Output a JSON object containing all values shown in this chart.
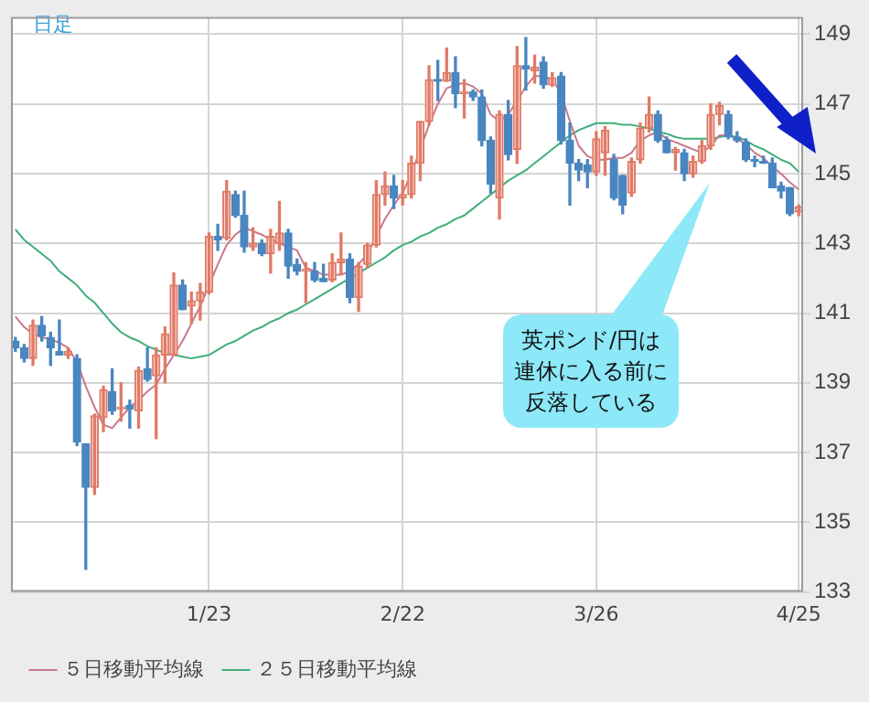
{
  "chart_data": {
    "type": "candlestick",
    "categories": [
      null,
      null,
      null,
      null,
      null,
      null,
      null,
      null,
      null,
      null,
      null,
      null,
      null,
      null,
      null,
      null,
      null,
      null,
      null,
      null,
      null,
      null,
      "1/23",
      null,
      null,
      null,
      null,
      null,
      null,
      null,
      null,
      null,
      null,
      null,
      null,
      null,
      null,
      null,
      null,
      null,
      null,
      null,
      null,
      null,
      "2/22",
      null,
      null,
      null,
      null,
      null,
      null,
      null,
      null,
      null,
      null,
      null,
      null,
      null,
      null,
      null,
      null,
      null,
      null,
      null,
      null,
      null,
      "3/26",
      null,
      null,
      null,
      null,
      null,
      null,
      null,
      null,
      null,
      null,
      null,
      null,
      null,
      null,
      null,
      null,
      null,
      null,
      null,
      null,
      null,
      null,
      "4/25"
    ],
    "ohlc": [
      [
        140.2,
        140.3,
        139.9,
        140.0
      ],
      [
        140.0,
        140.1,
        139.6,
        139.7
      ],
      [
        139.7,
        140.8,
        139.5,
        140.65
      ],
      [
        140.65,
        140.9,
        140.2,
        140.35
      ],
      [
        140.3,
        140.45,
        139.5,
        140.0
      ],
      [
        139.9,
        140.8,
        139.8,
        139.8
      ],
      [
        139.8,
        140.0,
        139.7,
        139.9
      ],
      [
        139.7,
        139.8,
        137.2,
        137.3
      ],
      [
        137.25,
        137.25,
        133.65,
        136.0
      ],
      [
        136.0,
        138.1,
        135.8,
        138.05
      ],
      [
        138.0,
        138.9,
        137.6,
        138.8
      ],
      [
        138.75,
        139.4,
        138.1,
        138.2
      ],
      [
        138.25,
        139.0,
        137.9,
        138.3
      ],
      [
        138.35,
        138.5,
        137.7,
        138.25
      ],
      [
        138.2,
        139.45,
        137.7,
        139.35
      ],
      [
        139.4,
        140.0,
        139.05,
        139.1
      ],
      [
        139.2,
        140.0,
        137.4,
        139.8
      ],
      [
        139.8,
        140.6,
        139.0,
        140.4
      ],
      [
        139.8,
        142.15,
        139.8,
        141.8
      ],
      [
        141.8,
        141.95,
        141.1,
        141.1
      ],
      [
        141.2,
        141.6,
        140.7,
        141.35
      ],
      [
        141.35,
        141.85,
        140.8,
        141.6
      ],
      [
        141.6,
        143.3,
        141.55,
        143.2
      ],
      [
        143.2,
        143.55,
        142.8,
        143.1
      ],
      [
        143.15,
        144.8,
        143.1,
        144.5
      ],
      [
        144.4,
        144.5,
        143.75,
        143.8
      ],
      [
        143.8,
        144.5,
        142.75,
        142.9
      ],
      [
        142.9,
        143.45,
        142.8,
        143.0
      ],
      [
        143.0,
        143.1,
        142.65,
        142.7
      ],
      [
        142.7,
        143.4,
        142.15,
        143.2
      ],
      [
        143.0,
        144.2,
        142.8,
        143.3
      ],
      [
        143.3,
        143.4,
        142.0,
        142.35
      ],
      [
        142.4,
        142.55,
        142.1,
        142.2
      ],
      [
        142.2,
        142.45,
        141.3,
        142.25
      ],
      [
        142.2,
        142.45,
        141.9,
        141.95
      ],
      [
        142.0,
        142.4,
        141.9,
        141.9
      ],
      [
        141.95,
        142.7,
        141.9,
        142.45
      ],
      [
        142.45,
        143.3,
        142.1,
        142.55
      ],
      [
        142.55,
        142.7,
        141.3,
        141.45
      ],
      [
        141.45,
        142.45,
        141.05,
        142.35
      ],
      [
        142.4,
        143.0,
        142.3,
        142.95
      ],
      [
        142.95,
        144.8,
        142.9,
        144.4
      ],
      [
        144.4,
        145.05,
        144.1,
        144.65
      ],
      [
        144.65,
        144.95,
        144.0,
        144.3
      ],
      [
        144.3,
        144.8,
        144.1,
        144.4
      ],
      [
        144.4,
        145.5,
        144.3,
        145.3
      ],
      [
        145.3,
        146.5,
        144.8,
        146.5
      ],
      [
        146.5,
        148.1,
        146.4,
        147.7
      ],
      [
        147.7,
        148.25,
        147.1,
        147.65
      ],
      [
        147.65,
        148.6,
        147.65,
        147.9
      ],
      [
        147.9,
        148.35,
        146.9,
        147.3
      ],
      [
        147.3,
        147.7,
        146.6,
        147.35
      ],
      [
        147.35,
        147.4,
        147.1,
        147.2
      ],
      [
        147.2,
        147.4,
        145.8,
        145.95
      ],
      [
        145.95,
        146.05,
        144.45,
        144.7
      ],
      [
        144.3,
        146.8,
        143.7,
        146.7
      ],
      [
        146.7,
        147.1,
        145.4,
        145.55
      ],
      [
        145.7,
        148.65,
        145.3,
        148.1
      ],
      [
        148.1,
        148.9,
        147.4,
        148.0
      ],
      [
        147.95,
        148.4,
        147.6,
        148.05
      ],
      [
        148.2,
        148.35,
        147.45,
        147.55
      ],
      [
        147.55,
        147.9,
        147.5,
        147.75
      ],
      [
        147.8,
        147.9,
        145.85,
        145.95
      ],
      [
        145.95,
        146.45,
        144.1,
        145.3
      ],
      [
        145.3,
        145.4,
        144.8,
        145.1
      ],
      [
        145.25,
        145.4,
        144.6,
        145.05
      ],
      [
        145.05,
        146.2,
        144.95,
        146.0
      ],
      [
        145.6,
        146.35,
        144.95,
        146.25
      ],
      [
        145.4,
        145.55,
        144.25,
        144.3
      ],
      [
        144.95,
        144.95,
        143.85,
        144.1
      ],
      [
        144.45,
        145.45,
        144.35,
        145.35
      ],
      [
        145.4,
        146.45,
        145.3,
        146.3
      ],
      [
        146.3,
        147.2,
        146.2,
        146.7
      ],
      [
        146.7,
        146.8,
        145.9,
        145.95
      ],
      [
        145.95,
        146.05,
        145.6,
        145.6
      ],
      [
        145.6,
        145.75,
        145.1,
        145.7
      ],
      [
        145.6,
        145.7,
        144.8,
        145.0
      ],
      [
        145.0,
        145.5,
        144.9,
        145.35
      ],
      [
        145.35,
        145.95,
        145.3,
        145.8
      ],
      [
        145.8,
        147.0,
        145.7,
        146.7
      ],
      [
        146.7,
        147.05,
        146.4,
        146.95
      ],
      [
        146.7,
        146.8,
        146.0,
        146.05
      ],
      [
        146.05,
        146.2,
        145.9,
        145.95
      ],
      [
        145.9,
        146.0,
        145.35,
        145.4
      ],
      [
        145.4,
        145.5,
        145.2,
        145.35
      ],
      [
        145.35,
        145.5,
        145.3,
        145.3
      ],
      [
        145.3,
        145.45,
        144.6,
        144.6
      ],
      [
        144.65,
        144.75,
        144.3,
        144.5
      ],
      [
        144.6,
        144.6,
        143.8,
        143.85
      ],
      [
        143.9,
        144.1,
        143.8,
        144.05
      ]
    ],
    "series": [
      {
        "name": "５日移動平均線",
        "type": "line",
        "color": "#c9788a",
        "values": [
          140.9,
          140.6,
          140.4,
          140.3,
          140.25,
          140.15,
          140.0,
          139.6,
          138.9,
          138.3,
          137.8,
          137.7,
          138.0,
          138.3,
          138.5,
          138.75,
          138.95,
          139.4,
          139.8,
          140.2,
          140.7,
          141.2,
          141.8,
          142.4,
          142.95,
          143.25,
          143.45,
          143.35,
          143.25,
          143.1,
          143.0,
          142.9,
          142.8,
          142.3,
          142.2,
          142.1,
          142.1,
          142.1,
          142.2,
          142.4,
          142.7,
          143.2,
          143.7,
          144.1,
          144.45,
          145.0,
          145.7,
          146.4,
          147.0,
          147.45,
          147.55,
          147.6,
          147.5,
          147.3,
          146.7,
          146.5,
          146.7,
          147.1,
          147.5,
          147.8,
          147.8,
          147.7,
          147.3,
          146.5,
          145.8,
          145.5,
          145.4,
          145.4,
          145.45,
          145.45,
          145.6,
          145.95,
          146.1,
          146.2,
          146.0,
          145.9,
          145.8,
          145.7,
          145.6,
          145.8,
          146.1,
          146.1,
          146.0,
          145.85,
          145.6,
          145.45,
          145.2,
          145.0,
          144.75,
          144.55
        ]
      },
      {
        "name": "２５日移動平均線",
        "type": "line",
        "color": "#3fae78",
        "values": [
          143.4,
          143.1,
          142.9,
          142.7,
          142.5,
          142.2,
          142.0,
          141.8,
          141.5,
          141.3,
          141.0,
          140.7,
          140.45,
          140.3,
          140.2,
          140.05,
          139.95,
          139.85,
          139.8,
          139.75,
          139.7,
          139.75,
          139.8,
          139.95,
          140.1,
          140.2,
          140.35,
          140.5,
          140.6,
          140.75,
          140.85,
          141.0,
          141.1,
          141.25,
          141.4,
          141.55,
          141.7,
          141.85,
          142.0,
          142.15,
          142.3,
          142.45,
          142.6,
          142.8,
          142.95,
          143.05,
          143.2,
          143.3,
          143.45,
          143.55,
          143.7,
          143.8,
          144.0,
          144.2,
          144.4,
          144.6,
          144.8,
          144.95,
          145.1,
          145.3,
          145.5,
          145.7,
          145.9,
          146.1,
          146.25,
          146.35,
          146.45,
          146.45,
          146.45,
          146.4,
          146.4,
          146.35,
          146.3,
          146.2,
          146.15,
          146.05,
          146.0,
          146.0,
          146.0,
          146.0,
          146.05,
          146.1,
          146.05,
          145.95,
          145.8,
          145.7,
          145.55,
          145.4,
          145.3,
          145.05
        ]
      }
    ],
    "ylim": [
      133,
      149.5
    ],
    "yticks": [
      133,
      135,
      137,
      139,
      141,
      143,
      145,
      147,
      149
    ],
    "grid": true,
    "legend": "bottom",
    "annotations": [
      "日足",
      "英ポンド/円は連休に入る前に反落している"
    ]
  }
}
